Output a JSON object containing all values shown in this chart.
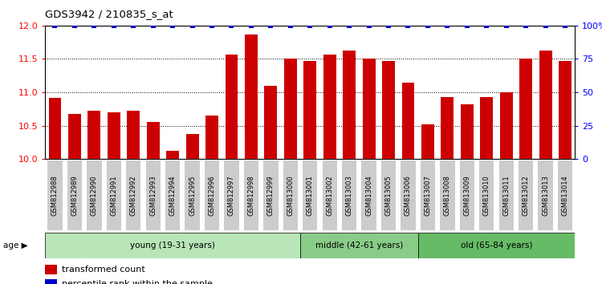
{
  "title": "GDS3942 / 210835_s_at",
  "samples": [
    "GSM812988",
    "GSM812989",
    "GSM812990",
    "GSM812991",
    "GSM812992",
    "GSM812993",
    "GSM812994",
    "GSM812995",
    "GSM812996",
    "GSM812997",
    "GSM812998",
    "GSM812999",
    "GSM813000",
    "GSM813001",
    "GSM813002",
    "GSM813003",
    "GSM813004",
    "GSM813005",
    "GSM813006",
    "GSM813007",
    "GSM813008",
    "GSM813009",
    "GSM813010",
    "GSM813011",
    "GSM813012",
    "GSM813013",
    "GSM813014"
  ],
  "bar_values": [
    10.92,
    10.68,
    10.72,
    10.7,
    10.72,
    10.56,
    10.12,
    10.38,
    10.65,
    11.57,
    11.87,
    11.1,
    11.5,
    11.47,
    11.57,
    11.62,
    11.5,
    11.47,
    11.15,
    10.52,
    10.93,
    10.82,
    10.93,
    11.0,
    11.5,
    11.62,
    11.47
  ],
  "percentile_values": [
    100,
    100,
    100,
    100,
    100,
    100,
    100,
    100,
    100,
    100,
    100,
    100,
    100,
    100,
    100,
    100,
    100,
    100,
    100,
    100,
    100,
    100,
    100,
    100,
    100,
    100,
    100
  ],
  "bar_color": "#cc0000",
  "percentile_color": "#0000cc",
  "ylim_left": [
    10.0,
    12.0
  ],
  "ylim_right": [
    0,
    100
  ],
  "yticks_left": [
    10.0,
    10.5,
    11.0,
    11.5,
    12.0
  ],
  "yticks_right": [
    0,
    25,
    50,
    75,
    100
  ],
  "ytick_labels_right": [
    "0",
    "25",
    "50",
    "75",
    "100%"
  ],
  "groups": [
    {
      "label": "young (19-31 years)",
      "start": 0,
      "end": 13,
      "color": "#b8e6b8"
    },
    {
      "label": "middle (42-61 years)",
      "start": 13,
      "end": 19,
      "color": "#88cc88"
    },
    {
      "label": "old (65-84 years)",
      "start": 19,
      "end": 27,
      "color": "#66bb66"
    }
  ],
  "age_label": "age",
  "legend_items": [
    {
      "label": "transformed count",
      "color": "#cc0000"
    },
    {
      "label": "percentile rank within the sample",
      "color": "#0000cc"
    }
  ],
  "background_color": "#ffffff",
  "tick_bg_color": "#cccccc"
}
